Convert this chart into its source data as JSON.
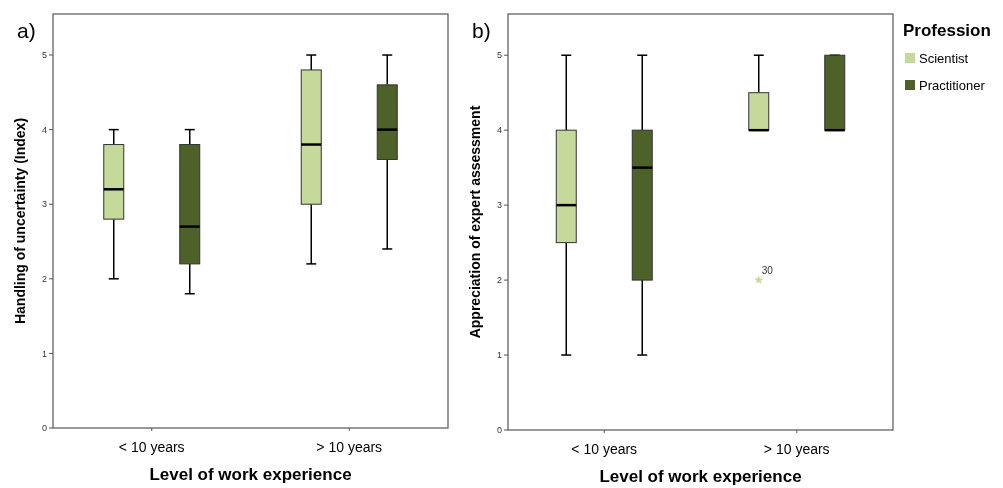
{
  "chart_data": [
    {
      "type": "box",
      "title": "a)",
      "xlabel": "Level of work experience",
      "ylabel": "Handling of uncertainty (Index)",
      "categories": [
        "< 10 years",
        "> 10 years"
      ],
      "ylim": [
        0,
        5.55
      ],
      "yticks": [
        0,
        1,
        2,
        3,
        4,
        5
      ],
      "legend": false,
      "series": [
        {
          "color": "#c5d99a",
          "boxes": [
            {
              "low": 2,
              "q1": 2.8,
              "median": 3.2,
              "q3": 3.8,
              "high": 4
            },
            {
              "low": 2.2,
              "q1": 3,
              "median": 3.8,
              "q3": 4.8,
              "high": 5
            }
          ]
        },
        {
          "color": "#4e6128",
          "boxes": [
            {
              "low": 1.8,
              "q1": 2.2,
              "median": 2.7,
              "q3": 3.8,
              "high": 4
            },
            {
              "low": 2.4,
              "q1": 3.6,
              "median": 4,
              "q3": 4.6,
              "high": 5
            }
          ]
        }
      ]
    },
    {
      "type": "box",
      "title": "b)",
      "xlabel": "Level of work experience",
      "ylabel": "Appreciation of expert assessment",
      "categories": [
        "< 10 years",
        "> 10 years"
      ],
      "ylim": [
        0,
        5.55
      ],
      "yticks": [
        0,
        1,
        2,
        3,
        4,
        5
      ],
      "legend": "right",
      "legend_title": "Profession",
      "marker": "star",
      "annotations": [
        "30"
      ],
      "series": [
        {
          "name": "Scientist",
          "color": "#c5d99a",
          "boxes": [
            {
              "low": 1,
              "q1": 2.5,
              "median": 3,
              "q3": 4,
              "high": 5
            },
            {
              "low": 4,
              "q1": 4,
              "median": 4,
              "q3": 4.5,
              "high": 5,
              "outliers": [
                2
              ]
            }
          ]
        },
        {
          "name": "Practitioner",
          "color": "#4e6128",
          "boxes": [
            {
              "low": 1,
              "q1": 2,
              "median": 3.5,
              "q3": 4,
              "high": 5
            },
            {
              "low": 4,
              "q1": 4,
              "median": 4,
              "q3": 5,
              "high": 5
            }
          ]
        }
      ]
    }
  ]
}
